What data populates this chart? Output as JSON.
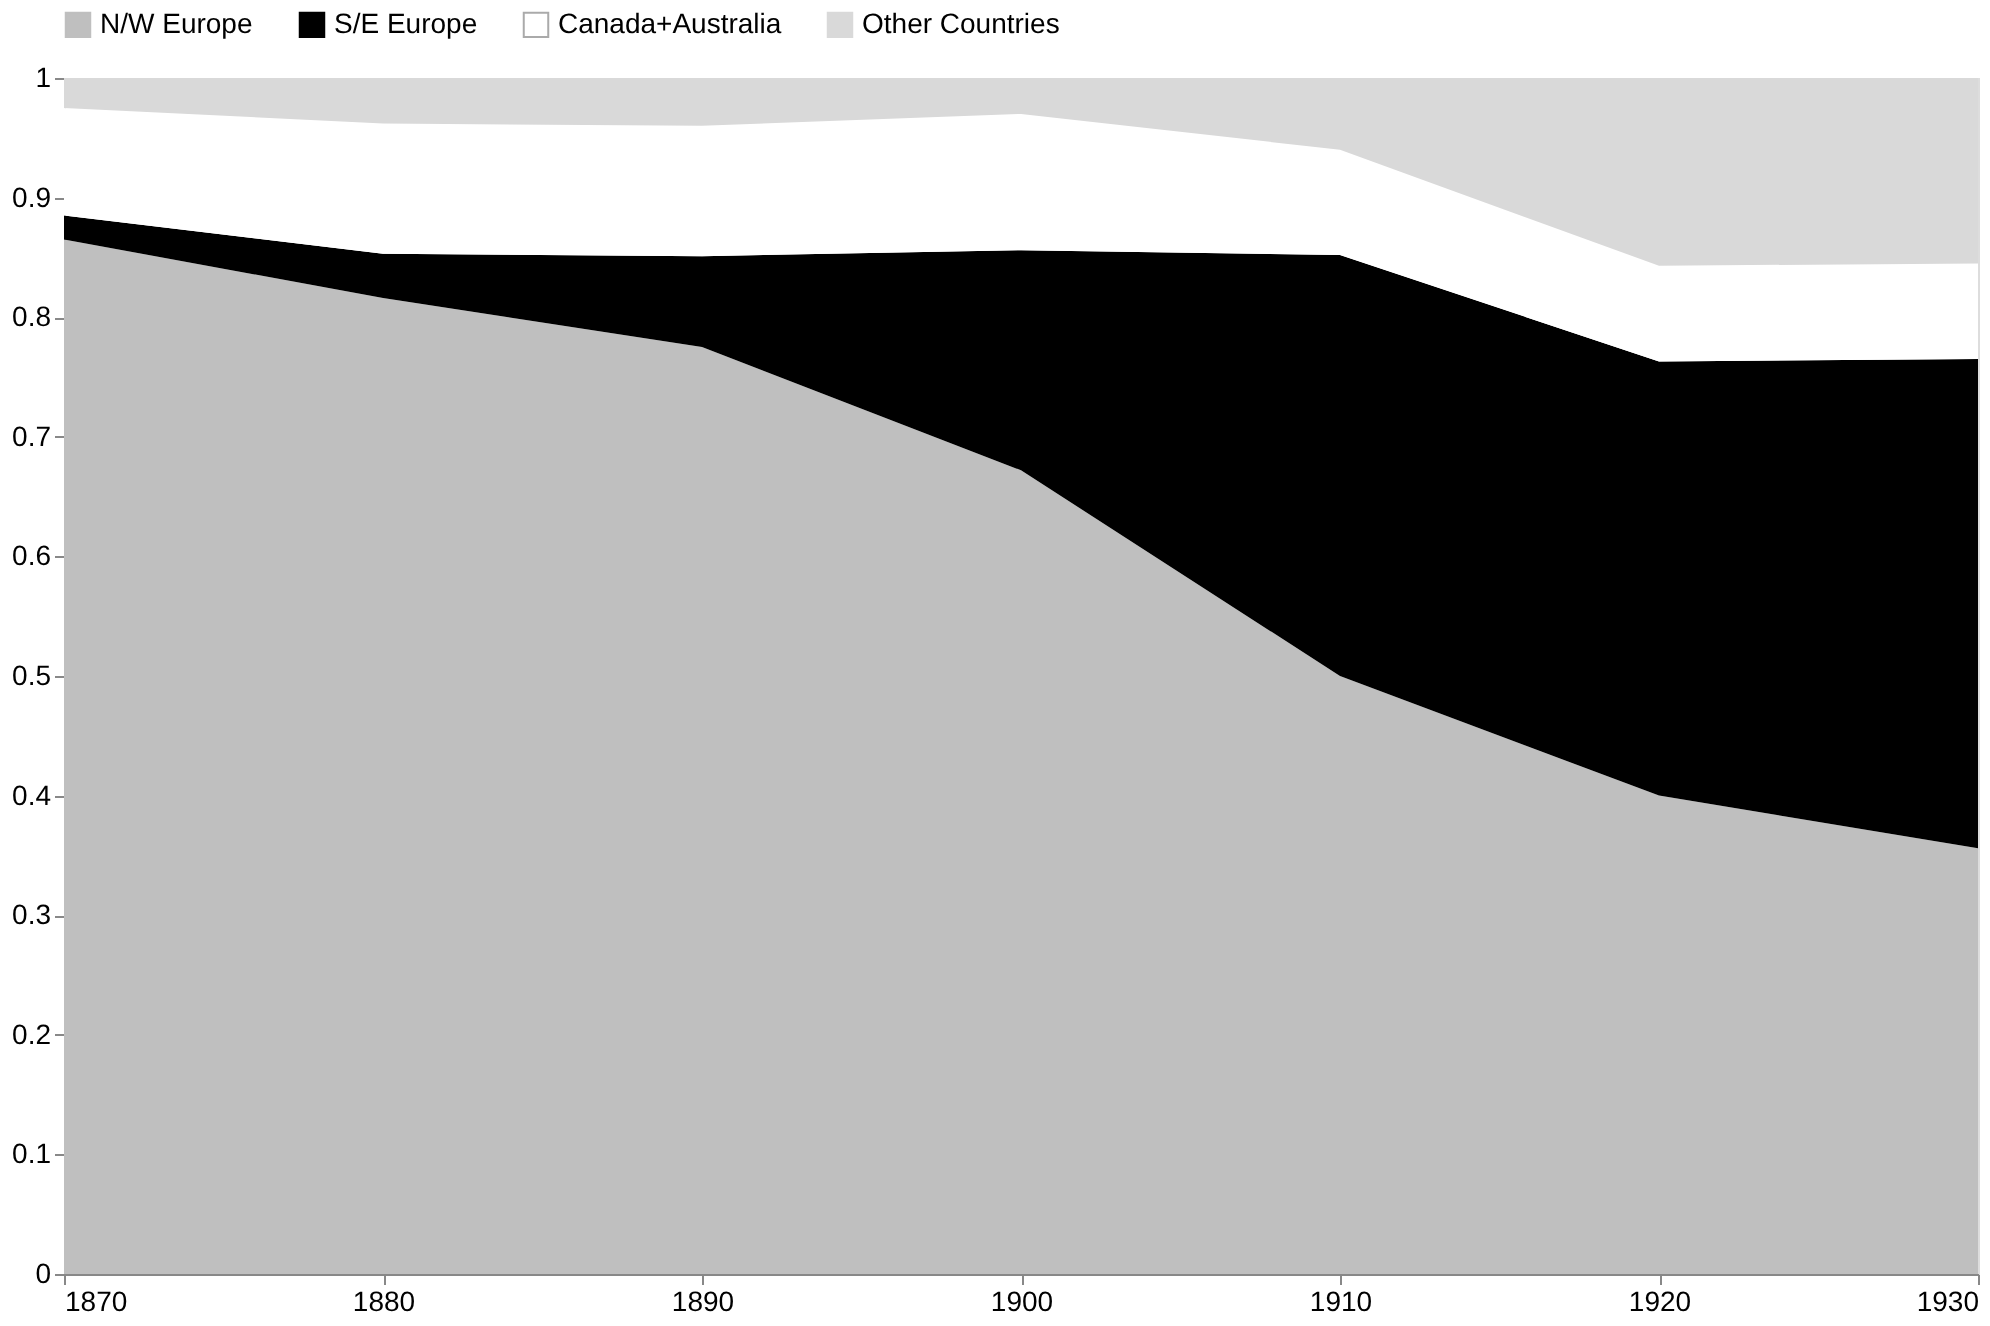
{
  "chart_data": {
    "type": "area",
    "stacked": true,
    "legend": "top",
    "grid": false,
    "x": [
      1870,
      1880,
      1890,
      1900,
      1910,
      1920,
      1930
    ],
    "xlim": [
      1870,
      1930
    ],
    "xticks": [
      1870,
      1880,
      1890,
      1900,
      1910,
      1920,
      1930
    ],
    "ylim": [
      0,
      1
    ],
    "yticks": [
      0,
      0.1,
      0.2,
      0.3,
      0.4,
      0.5,
      0.6,
      0.7,
      0.8,
      0.9,
      1
    ],
    "series": [
      {
        "name": "N/W Europe",
        "color": "#bfbfbf",
        "values": [
          0.865,
          0.816,
          0.775,
          0.672,
          0.5,
          0.4,
          0.356
        ]
      },
      {
        "name": "S/E Europe",
        "color": "#000000",
        "values": [
          0.02,
          0.037,
          0.076,
          0.184,
          0.352,
          0.363,
          0.409
        ]
      },
      {
        "name": "Canada+Australia",
        "color": "#ffffff",
        "values": [
          0.09,
          0.109,
          0.109,
          0.114,
          0.088,
          0.08,
          0.08
        ]
      },
      {
        "name": "Other Countries",
        "color": "#d9d9d9",
        "values": [
          0.025,
          0.038,
          0.04,
          0.03,
          0.06,
          0.157,
          0.155
        ]
      }
    ]
  }
}
